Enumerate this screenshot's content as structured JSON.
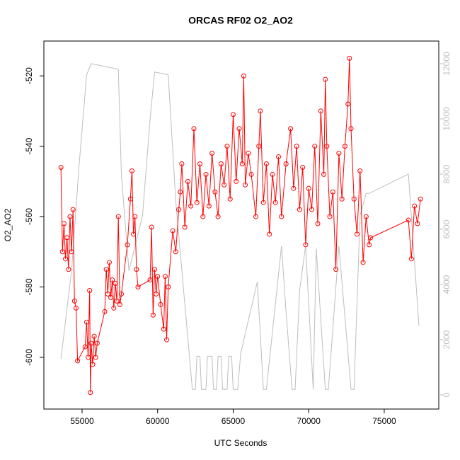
{
  "chart_data": {
    "type": "line",
    "title": "ORCAS RF02 O2_AO2",
    "xlabel": "UTC Seconds",
    "ylabel": "O2_AO2",
    "xlim": [
      52470,
      78610
    ],
    "ylim": [
      -614.7,
      -510.1
    ],
    "y2lim": [
      -513,
      12820
    ],
    "xticks": [
      55000,
      60000,
      65000,
      70000,
      75000
    ],
    "yticks": [
      -600,
      -580,
      -560,
      -540,
      -520
    ],
    "y2ticks": [
      0,
      2000,
      4000,
      6000,
      8000,
      10000,
      12000
    ],
    "series": [
      {
        "color": "#bebebe",
        "axis": "y2",
        "x": [
          53600,
          54300,
          54800,
          55300,
          55600,
          57400,
          57600,
          58100,
          59000,
          59500,
          59800,
          60700,
          61200,
          62300,
          62500,
          62600,
          62800,
          62900,
          63200,
          63300,
          63600,
          63700,
          63900,
          64000,
          64200,
          64300,
          64600,
          64700,
          64900,
          65000,
          65300,
          65500,
          66600,
          67000,
          67200,
          68200,
          68500,
          68900,
          69100,
          69400,
          69800,
          70300,
          70500,
          71100,
          71300,
          72000,
          72800,
          73000,
          73400,
          73800,
          74000,
          76600,
          77300
        ],
        "values": [
          1300,
          4500,
          8300,
          11600,
          12000,
          11800,
          8000,
          4500,
          6500,
          10000,
          11700,
          11600,
          7000,
          200,
          200,
          1400,
          1400,
          200,
          200,
          1400,
          1400,
          200,
          200,
          1400,
          1400,
          200,
          200,
          1400,
          1400,
          200,
          200,
          1500,
          4100,
          200,
          200,
          5400,
          3000,
          200,
          200,
          3800,
          5400,
          200,
          5300,
          200,
          200,
          5400,
          200,
          200,
          6500,
          7300,
          7300,
          8000,
          2500
        ]
      },
      {
        "color": "#ff0000",
        "x": [
          53600,
          53700,
          53800,
          53900,
          54000,
          54100,
          54200,
          54300,
          54400,
          54500,
          54600,
          54700,
          55200,
          55300,
          55400,
          55500,
          55550,
          55600,
          55700,
          55800,
          55900,
          56000,
          56500,
          56600,
          56700,
          56800,
          56900,
          57000,
          57100,
          57200,
          57300,
          57400,
          57500,
          57600,
          58000,
          58200,
          58300,
          58400,
          58500,
          58600,
          58700,
          59500,
          59600,
          59700,
          59800,
          59900,
          60000,
          60200,
          60400,
          60500,
          60600,
          60700,
          61000,
          61200,
          61400,
          61500,
          61600,
          61800,
          62000,
          62200,
          62400,
          62600,
          62800,
          63000,
          63200,
          63400,
          63600,
          63800,
          64000,
          64200,
          64400,
          64600,
          64800,
          65000,
          65200,
          65400,
          65600,
          65700,
          65800,
          66000,
          66200,
          66500,
          66700,
          66800,
          67000,
          67200,
          67400,
          67600,
          67800,
          68000,
          68200,
          68500,
          68800,
          69000,
          69200,
          69400,
          69600,
          69800,
          70000,
          70200,
          70400,
          70600,
          70800,
          71000,
          71100,
          71200,
          71400,
          71600,
          71800,
          72000,
          72200,
          72400,
          72600,
          72700,
          72800,
          73000,
          73200,
          73400,
          73600,
          73800,
          74000,
          74100,
          76600,
          76800,
          77000,
          77200,
          77400
        ],
        "values": [
          -546,
          -570,
          -562,
          -572,
          -566,
          -575,
          -560,
          -570,
          -558,
          -584,
          -586,
          -601,
          -597,
          -590,
          -600,
          -581,
          -610,
          -596,
          -602,
          -594,
          -600,
          -596,
          -587,
          -575,
          -582,
          -573,
          -583,
          -578,
          -586,
          -579,
          -584,
          -560,
          -585,
          -582,
          -568,
          -555,
          -547,
          -565,
          -560,
          -575,
          -580,
          -578,
          -563,
          -588,
          -575,
          -582,
          -577,
          -585,
          -592,
          -577,
          -595,
          -580,
          -564,
          -570,
          -558,
          -553,
          -545,
          -563,
          -550,
          -557,
          -535,
          -556,
          -545,
          -560,
          -548,
          -557,
          -542,
          -553,
          -560,
          -545,
          -551,
          -540,
          -555,
          -531,
          -550,
          -535,
          -545,
          -520,
          -551,
          -542,
          -548,
          -560,
          -540,
          -530,
          -556,
          -545,
          -565,
          -548,
          -556,
          -543,
          -560,
          -545,
          -535,
          -552,
          -540,
          -558,
          -546,
          -568,
          -552,
          -558,
          -540,
          -562,
          -530,
          -548,
          -521,
          -540,
          -560,
          -553,
          -575,
          -542,
          -555,
          -540,
          -528,
          -515,
          -535,
          -555,
          -565,
          -547,
          -573,
          -560,
          -568,
          -566,
          -561,
          -572,
          -557,
          -562,
          -555
        ]
      }
    ]
  }
}
